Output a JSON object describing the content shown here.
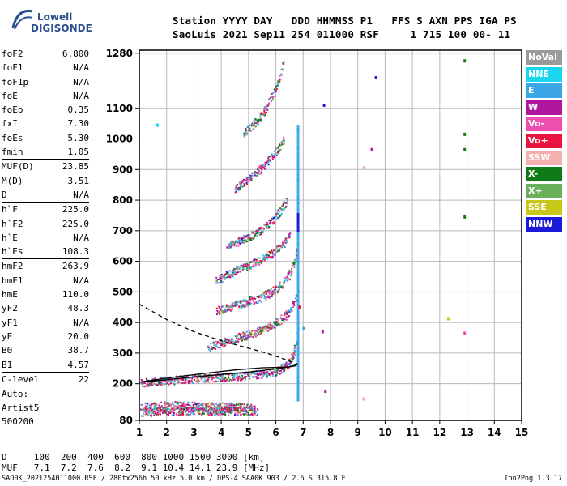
{
  "logo": {
    "line1": "Lowell",
    "line2": "DIGISONDE"
  },
  "header": {
    "line1": "Station YYYY DAY   DDD HHMMSS P1   FFS S AXN PPS IGA PS",
    "line2": "SaoLuis 2021 Sep11 254 011000 RSF     1 715 100 00- 11"
  },
  "params": [
    {
      "group": 0,
      "name": "foF2",
      "value": "6.800"
    },
    {
      "group": 0,
      "name": "foF1",
      "value": "N/A"
    },
    {
      "group": 0,
      "name": "foF1p",
      "value": "N/A"
    },
    {
      "group": 0,
      "name": "foE",
      "value": "N/A"
    },
    {
      "group": 0,
      "name": "foEp",
      "value": "0.35"
    },
    {
      "group": 0,
      "name": "fxI",
      "value": "7.30"
    },
    {
      "group": 0,
      "name": "foEs",
      "value": "5.30"
    },
    {
      "group": 0,
      "name": "fmin",
      "value": "1.05"
    },
    {
      "group": 1,
      "name": "MUF(D)",
      "value": "23.85"
    },
    {
      "group": 1,
      "name": "M(D)",
      "value": "3.51"
    },
    {
      "group": 1,
      "name": "D",
      "value": "N/A"
    },
    {
      "group": 2,
      "name": "h`F",
      "value": "225.0"
    },
    {
      "group": 2,
      "name": "h`F2",
      "value": "225.0"
    },
    {
      "group": 2,
      "name": "h`E",
      "value": "N/A"
    },
    {
      "group": 2,
      "name": "h`Es",
      "value": "108.3"
    },
    {
      "group": 3,
      "name": "hmF2",
      "value": "263.9"
    },
    {
      "group": 3,
      "name": "hmF1",
      "value": "N/A"
    },
    {
      "group": 3,
      "name": "hmE",
      "value": "110.0"
    },
    {
      "group": 3,
      "name": "yF2",
      "value": "48.3"
    },
    {
      "group": 3,
      "name": "yF1",
      "value": "N/A"
    },
    {
      "group": 3,
      "name": "yE",
      "value": "20.0"
    },
    {
      "group": 3,
      "name": "B0",
      "value": "38.7"
    },
    {
      "group": 3,
      "name": "B1",
      "value": "4.57"
    },
    {
      "group": 4,
      "name": "C-level",
      "value": "22"
    }
  ],
  "auto": {
    "line1": "Auto:",
    "line2": "Artist5",
    "line3": "500200"
  },
  "legend": [
    {
      "label": "NoVal",
      "color": "#9a9a9a"
    },
    {
      "label": "NNE",
      "color": "#19d6ee"
    },
    {
      "label": "E",
      "color": "#3aa6e8"
    },
    {
      "label": "W",
      "color": "#b0169e"
    },
    {
      "label": "Vo-",
      "color": "#ee4fae"
    },
    {
      "label": "Vo+",
      "color": "#e8163e"
    },
    {
      "label": "SSW",
      "color": "#f4b0b0"
    },
    {
      "label": "X-",
      "color": "#0f7a17"
    },
    {
      "label": "X+",
      "color": "#68b05a"
    },
    {
      "label": "SSE",
      "color": "#c8c81a"
    },
    {
      "label": "NNW",
      "color": "#1a1ad8"
    }
  ],
  "footer": {
    "line1": "D     100  200  400  600  800 1000 1500 3000 [km]",
    "line2": "MUF   7.1  7.2  7.6  8.2  9.1 10.4 14.1 23.9 [MHz]",
    "line3": "SAO0K_2021254011000.RSF / 280fx256h 50 kHz 5.0 km / DPS-4 SAA0K 903 / 2.6 S 315.8 E",
    "version": "Ion2Png 1.3.17"
  },
  "chart_data": {
    "type": "scatter",
    "xlim": [
      1,
      15
    ],
    "ylim": [
      80,
      1290
    ],
    "x_ticks": [
      "1",
      "2",
      "3",
      "4",
      "5",
      "6",
      "7",
      "8",
      "9",
      "10",
      "11",
      "12",
      "13",
      "14",
      "15"
    ],
    "y_ticks": [
      {
        "value": 80,
        "label": "80"
      },
      {
        "value": 200,
        "label": "200"
      },
      {
        "value": 300,
        "label": "300"
      },
      {
        "value": 400,
        "label": "400"
      },
      {
        "value": 500,
        "label": "500"
      },
      {
        "value": 600,
        "label": "600"
      },
      {
        "value": 700,
        "label": "700"
      },
      {
        "value": 800,
        "label": "800"
      },
      {
        "value": 900,
        "label": "900"
      },
      {
        "value": 1000,
        "label": "1000"
      },
      {
        "value": 1100,
        "label": "1100"
      },
      {
        "value": 1280,
        "label": "1280"
      }
    ],
    "grid": true,
    "traces": [
      {
        "name": "F trace 1st hop",
        "points": [
          [
            1.05,
            205
          ],
          [
            2,
            212
          ],
          [
            3,
            218
          ],
          [
            4,
            222
          ],
          [
            5,
            228
          ],
          [
            5.5,
            233
          ],
          [
            6,
            242
          ],
          [
            6.3,
            255
          ],
          [
            6.5,
            272
          ],
          [
            6.65,
            300
          ],
          [
            6.75,
            340
          ],
          [
            6.8,
            390
          ]
        ]
      },
      {
        "name": "F trace 2nd hop",
        "points": [
          [
            3.5,
            320
          ],
          [
            4,
            335
          ],
          [
            4.5,
            350
          ],
          [
            5,
            362
          ],
          [
            5.5,
            378
          ],
          [
            6,
            400
          ],
          [
            6.3,
            420
          ],
          [
            6.5,
            440
          ],
          [
            6.7,
            475
          ],
          [
            6.8,
            510
          ]
        ]
      },
      {
        "name": "F trace 3rd hop",
        "points": [
          [
            3.8,
            440
          ],
          [
            4.3,
            452
          ],
          [
            4.8,
            465
          ],
          [
            5.3,
            478
          ],
          [
            5.8,
            500
          ],
          [
            6.2,
            525
          ],
          [
            6.5,
            560
          ],
          [
            6.7,
            610
          ],
          [
            6.8,
            660
          ]
        ]
      },
      {
        "name": "F trace 4th hop",
        "points": [
          [
            3.8,
            540
          ],
          [
            4.3,
            560
          ],
          [
            4.8,
            580
          ],
          [
            5.3,
            600
          ],
          [
            5.8,
            625
          ],
          [
            6.2,
            650
          ],
          [
            6.5,
            690
          ]
        ]
      },
      {
        "name": "F trace 5th hop",
        "points": [
          [
            4.2,
            650
          ],
          [
            4.7,
            670
          ],
          [
            5.2,
            690
          ],
          [
            5.7,
            720
          ],
          [
            6.1,
            760
          ],
          [
            6.4,
            800
          ]
        ]
      },
      {
        "name": "F trace 6th hop",
        "points": [
          [
            4.5,
            840
          ],
          [
            5,
            870
          ],
          [
            5.5,
            910
          ],
          [
            6,
            960
          ],
          [
            6.3,
            1000
          ]
        ]
      },
      {
        "name": "F trace 7th hop",
        "points": [
          [
            4.8,
            1020
          ],
          [
            5.3,
            1060
          ],
          [
            5.7,
            1110
          ],
          [
            6.0,
            1170
          ],
          [
            6.3,
            1260
          ]
        ]
      },
      {
        "name": "Es trace",
        "points": [
          [
            1.05,
            108
          ],
          [
            1.5,
            110
          ],
          [
            2,
            112
          ],
          [
            2.5,
            113
          ],
          [
            3,
            114
          ],
          [
            3.5,
            112
          ],
          [
            4,
            113
          ],
          [
            4.5,
            112
          ],
          [
            5,
            113
          ],
          [
            5.3,
            111
          ]
        ]
      },
      {
        "name": "Es 2nd hop",
        "points": [
          [
            1.05,
            125
          ],
          [
            1.6,
            128
          ],
          [
            2.2,
            130
          ],
          [
            2.8,
            130
          ],
          [
            3.4,
            128
          ],
          [
            4,
            127
          ],
          [
            4.6,
            126
          ],
          [
            5.2,
            124
          ]
        ]
      }
    ],
    "fit_profile": [
      [
        1,
        205
      ],
      [
        2,
        213
      ],
      [
        3,
        222
      ],
      [
        4,
        230
      ],
      [
        5,
        238
      ],
      [
        6,
        248
      ],
      [
        6.5,
        255
      ],
      [
        6.75,
        262
      ],
      [
        6.8,
        264
      ]
    ],
    "fit_profile_reflect": [
      [
        6.8,
        264
      ],
      [
        6.7,
        258
      ],
      [
        6.4,
        254
      ],
      [
        5.5,
        252
      ],
      [
        4.5,
        245
      ],
      [
        3.5,
        235
      ],
      [
        2.5,
        224
      ],
      [
        1.5,
        212
      ],
      [
        1,
        205
      ]
    ],
    "dashed_profile": [
      [
        1,
        460
      ],
      [
        1.5,
        435
      ],
      [
        2,
        410
      ],
      [
        2.5,
        390
      ],
      [
        3,
        370
      ],
      [
        3.5,
        355
      ],
      [
        4,
        340
      ],
      [
        4.5,
        328
      ],
      [
        5,
        316
      ],
      [
        5.5,
        304
      ],
      [
        6,
        290
      ],
      [
        6.4,
        277
      ],
      [
        6.8,
        264
      ]
    ],
    "vertical_mark_x": 6.8
  }
}
